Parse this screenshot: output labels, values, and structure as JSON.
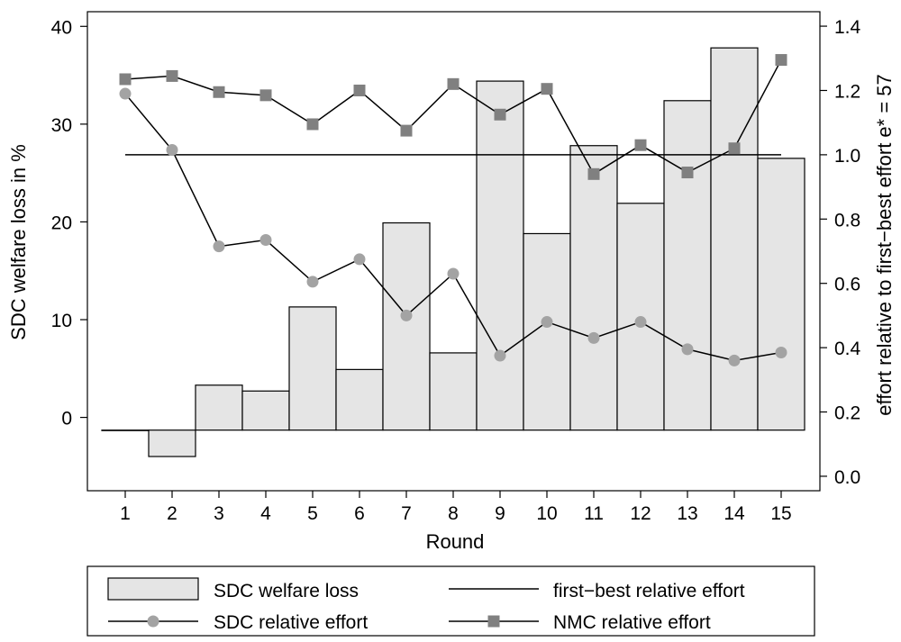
{
  "chart_data": {
    "type": "bar",
    "xlabel": "Round",
    "ylabel_left": "SDC welfare loss in %",
    "ylabel_right": "effort relative to first−best effort e* = 57",
    "categories": [
      "1",
      "2",
      "3",
      "4",
      "5",
      "6",
      "7",
      "8",
      "9",
      "10",
      "11",
      "12",
      "13",
      "14",
      "15"
    ],
    "ylim_left": [
      -7.5,
      41.5
    ],
    "ylim_right": [
      -0.045,
      1.445
    ],
    "yticks_left": [
      "0",
      "10",
      "20",
      "30",
      "40"
    ],
    "yticks_right": [
      "0.0",
      "0.2",
      "0.4",
      "0.6",
      "0.8",
      "1.0",
      "1.2",
      "1.4"
    ],
    "bar_base": -1.3,
    "series": [
      {
        "name": "SDC welfare loss",
        "kind": "bar",
        "axis": "left",
        "values": [
          -1.3,
          -4.0,
          3.3,
          2.7,
          11.3,
          4.9,
          19.9,
          6.6,
          34.4,
          18.8,
          27.8,
          21.9,
          32.4,
          37.8,
          26.5
        ]
      },
      {
        "name": "first−best relative effort",
        "kind": "line",
        "axis": "right",
        "values": [
          1.0,
          1.0,
          1.0,
          1.0,
          1.0,
          1.0,
          1.0,
          1.0,
          1.0,
          1.0,
          1.0,
          1.0,
          1.0,
          1.0,
          1.0
        ]
      },
      {
        "name": "SDC relative effort",
        "kind": "line",
        "axis": "right",
        "marker": "circle",
        "values": [
          1.19,
          1.015,
          0.715,
          0.735,
          0.605,
          0.675,
          0.5,
          0.63,
          0.375,
          0.48,
          0.43,
          0.48,
          0.395,
          0.36,
          0.385
        ]
      },
      {
        "name": "NMC relative effort",
        "kind": "line",
        "axis": "right",
        "marker": "square",
        "values": [
          1.235,
          1.245,
          1.195,
          1.185,
          1.095,
          1.2,
          1.075,
          1.22,
          1.125,
          1.205,
          0.94,
          1.03,
          0.945,
          1.02,
          1.295
        ]
      }
    ],
    "legend": {
      "position": "bottom",
      "entries": [
        "SDC welfare loss",
        "first−best relative effort",
        "SDC relative effort",
        "NMC relative effort"
      ]
    },
    "colors": {
      "bar_fill": "#e5e5e5",
      "line": "#000000",
      "sdc_marker": "#a3a3a3",
      "nmc_marker": "#808080"
    }
  }
}
